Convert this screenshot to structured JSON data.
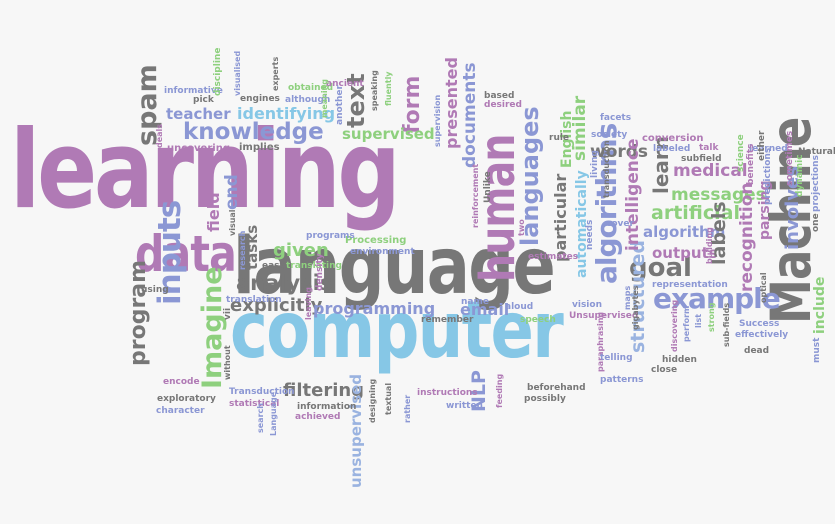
{
  "palette": {
    "blue": "#8b97d4",
    "sky": "#86c7e6",
    "purple": "#b07ab5",
    "green": "#8ed07e",
    "gray": "#777777",
    "lightblue": "#9ab3e0"
  },
  "words": [
    {
      "id": "w1",
      "text": "learning",
      "color": "purple"
    },
    {
      "id": "w2",
      "text": "language",
      "color": "gray"
    },
    {
      "id": "w3",
      "text": "computer",
      "color": "sky"
    },
    {
      "id": "w4",
      "text": "Machine",
      "color": "gray"
    },
    {
      "id": "w5",
      "text": "data",
      "color": "purple"
    },
    {
      "id": "w6",
      "text": "human",
      "color": "purple"
    },
    {
      "id": "w7",
      "text": "knowledge",
      "color": "blue"
    },
    {
      "id": "w8",
      "text": "spam",
      "color": "gray"
    },
    {
      "id": "w9",
      "text": "example",
      "color": "blue"
    },
    {
      "id": "w10",
      "text": "goal",
      "color": "gray"
    },
    {
      "id": "w11",
      "text": "Imagine",
      "color": "green"
    },
    {
      "id": "w12",
      "text": "inputs",
      "color": "blue"
    },
    {
      "id": "w13",
      "text": "program",
      "color": "gray"
    },
    {
      "id": "w14",
      "text": "analysis",
      "color": "gray"
    },
    {
      "id": "w15",
      "text": "explicitly",
      "color": "gray"
    },
    {
      "id": "w16",
      "text": "programming",
      "color": "blue"
    },
    {
      "id": "w17",
      "text": "given",
      "color": "green"
    },
    {
      "id": "w18",
      "text": "filtering",
      "color": "gray"
    },
    {
      "id": "w19",
      "text": "unsupervised",
      "color": "lightblue"
    },
    {
      "id": "w20",
      "text": "NLP",
      "color": "blue"
    },
    {
      "id": "w21",
      "text": "email",
      "color": "blue"
    },
    {
      "id": "w22",
      "text": "languages",
      "color": "blue"
    },
    {
      "id": "w23",
      "text": "documents",
      "color": "blue"
    },
    {
      "id": "w24",
      "text": "presented",
      "color": "purple"
    },
    {
      "id": "w25",
      "text": "form",
      "color": "purple"
    },
    {
      "id": "w26",
      "text": "text",
      "color": "gray"
    },
    {
      "id": "w27",
      "text": "supervised",
      "color": "green"
    },
    {
      "id": "w28",
      "text": "identifying",
      "color": "sky"
    },
    {
      "id": "w29",
      "text": "teacher",
      "color": "blue"
    },
    {
      "id": "w30",
      "text": "algorithms",
      "color": "blue"
    },
    {
      "id": "w31",
      "text": "structured",
      "color": "lightblue"
    },
    {
      "id": "w32",
      "text": "automatically",
      "color": "sky"
    },
    {
      "id": "w33",
      "text": "particular",
      "color": "gray"
    },
    {
      "id": "w34",
      "text": "English",
      "color": "green"
    },
    {
      "id": "w35",
      "text": "similar",
      "color": "green"
    },
    {
      "id": "w36",
      "text": "words",
      "color": "gray"
    },
    {
      "id": "w37",
      "text": "learn",
      "color": "gray"
    },
    {
      "id": "w38",
      "text": "intelligence",
      "color": "purple"
    },
    {
      "id": "w39",
      "text": "artificial",
      "color": "green"
    },
    {
      "id": "w40",
      "text": "algorithm",
      "color": "blue"
    },
    {
      "id": "w41",
      "text": "outputs",
      "color": "purple"
    },
    {
      "id": "w42",
      "text": "medical",
      "color": "purple"
    },
    {
      "id": "w43",
      "text": "messages",
      "color": "green"
    },
    {
      "id": "w44",
      "text": "labels",
      "color": "gray"
    },
    {
      "id": "w45",
      "text": "recognition",
      "color": "purple"
    },
    {
      "id": "w46",
      "text": "parsing",
      "color": "purple"
    },
    {
      "id": "w47",
      "text": "involves",
      "color": "blue"
    },
    {
      "id": "w48",
      "text": "include",
      "color": "green"
    },
    {
      "id": "w49",
      "text": "tasks",
      "color": "gray"
    },
    {
      "id": "w50",
      "text": "field",
      "color": "purple"
    },
    {
      "id": "w51",
      "text": "end",
      "color": "blue"
    },
    {
      "id": "w52",
      "text": "implies",
      "color": "gray"
    },
    {
      "id": "w53",
      "text": "uncovering",
      "color": "purple"
    },
    {
      "id": "w54",
      "text": "informative",
      "color": "blue"
    },
    {
      "id": "w55",
      "text": "pick",
      "color": "gray"
    },
    {
      "id": "w56",
      "text": "discipline",
      "color": "green"
    },
    {
      "id": "w57",
      "text": "visualised",
      "color": "blue"
    },
    {
      "id": "w58",
      "text": "engines",
      "color": "gray"
    },
    {
      "id": "w59",
      "text": "obtained",
      "color": "green"
    },
    {
      "id": "w60",
      "text": "although",
      "color": "blue"
    },
    {
      "id": "w61",
      "text": "experts",
      "color": "gray"
    },
    {
      "id": "w62",
      "text": "ancient",
      "color": "purple"
    },
    {
      "id": "w63",
      "text": "meaning",
      "color": "green"
    },
    {
      "id": "w64",
      "text": "another",
      "color": "blue"
    },
    {
      "id": "w65",
      "text": "speaking",
      "color": "gray"
    },
    {
      "id": "w66",
      "text": "fluently",
      "color": "green"
    },
    {
      "id": "w67",
      "text": "supervision",
      "color": "blue"
    },
    {
      "id": "w68",
      "text": "based",
      "color": "gray"
    },
    {
      "id": "w69",
      "text": "desired",
      "color": "purple"
    },
    {
      "id": "w70",
      "text": "rule",
      "color": "gray"
    },
    {
      "id": "w71",
      "text": "facets",
      "color": "blue"
    },
    {
      "id": "w72",
      "text": "society",
      "color": "blue"
    },
    {
      "id": "w73",
      "text": "conversion",
      "color": "purple"
    },
    {
      "id": "w74",
      "text": "labeled",
      "color": "blue"
    },
    {
      "id": "w75",
      "text": "talk",
      "color": "purple"
    },
    {
      "id": "w76",
      "text": "learned",
      "color": "blue"
    },
    {
      "id": "w77",
      "text": "subfield",
      "color": "gray"
    },
    {
      "id": "w78",
      "text": "science",
      "color": "green"
    },
    {
      "id": "w79",
      "text": "benefits",
      "color": "purple"
    },
    {
      "id": "w80",
      "text": "predictions",
      "color": "blue"
    },
    {
      "id": "w81",
      "text": "sometimes",
      "color": "purple"
    },
    {
      "id": "w82",
      "text": "Natural",
      "color": "gray"
    },
    {
      "id": "w83",
      "text": "dynamic",
      "color": "green"
    },
    {
      "id": "w84",
      "text": "projections",
      "color": "blue"
    },
    {
      "id": "w85",
      "text": "either",
      "color": "gray"
    },
    {
      "id": "w86",
      "text": "one",
      "color": "gray"
    },
    {
      "id": "w87",
      "text": "must",
      "color": "blue"
    },
    {
      "id": "w88",
      "text": "living",
      "color": "blue"
    },
    {
      "id": "w89",
      "text": "transduction",
      "color": "gray"
    },
    {
      "id": "w90",
      "text": "cover",
      "color": "blue"
    },
    {
      "id": "w91",
      "text": "Unlike",
      "color": "gray"
    },
    {
      "id": "w92",
      "text": "reinforcement",
      "color": "purple"
    },
    {
      "id": "w93",
      "text": "two",
      "color": "purple"
    },
    {
      "id": "w94",
      "text": "estimates",
      "color": "purple"
    },
    {
      "id": "w95",
      "text": "needs",
      "color": "blue"
    },
    {
      "id": "w96",
      "text": "Processing",
      "color": "green"
    },
    {
      "id": "w97",
      "text": "environment",
      "color": "blue"
    },
    {
      "id": "w98",
      "text": "programs",
      "color": "blue"
    },
    {
      "id": "w99",
      "text": "research",
      "color": "blue"
    },
    {
      "id": "w100",
      "text": "visual",
      "color": "gray"
    },
    {
      "id": "w101",
      "text": "easy",
      "color": "gray"
    },
    {
      "id": "w102",
      "text": "translating",
      "color": "green"
    },
    {
      "id": "w103",
      "text": "translation",
      "color": "blue"
    },
    {
      "id": "w104",
      "text": "density",
      "color": "purple"
    },
    {
      "id": "w105",
      "text": "leaving",
      "color": "purple"
    },
    {
      "id": "w106",
      "text": "using",
      "color": "gray"
    },
    {
      "id": "w107",
      "text": "vii",
      "color": "gray"
    },
    {
      "id": "w108",
      "text": "without",
      "color": "gray"
    },
    {
      "id": "w109",
      "text": "deals",
      "color": "purple"
    },
    {
      "id": "w110",
      "text": "encode",
      "color": "purple"
    },
    {
      "id": "w111",
      "text": "Transduction",
      "color": "blue"
    },
    {
      "id": "w112",
      "text": "statistical",
      "color": "purple"
    },
    {
      "id": "w113",
      "text": "search",
      "color": "blue"
    },
    {
      "id": "w114",
      "text": "Language",
      "color": "blue"
    },
    {
      "id": "w115",
      "text": "exploratory",
      "color": "gray"
    },
    {
      "id": "w116",
      "text": "character",
      "color": "blue"
    },
    {
      "id": "w117",
      "text": "information",
      "color": "gray"
    },
    {
      "id": "w118",
      "text": "achieved",
      "color": "purple"
    },
    {
      "id": "w119",
      "text": "designing",
      "color": "gray"
    },
    {
      "id": "w120",
      "text": "textual",
      "color": "gray"
    },
    {
      "id": "w121",
      "text": "rather",
      "color": "blue"
    },
    {
      "id": "w122",
      "text": "instructions",
      "color": "purple"
    },
    {
      "id": "w123",
      "text": "written",
      "color": "blue"
    },
    {
      "id": "w124",
      "text": "feeding",
      "color": "purple"
    },
    {
      "id": "w125",
      "text": "beforehand",
      "color": "gray"
    },
    {
      "id": "w126",
      "text": "possibly",
      "color": "gray"
    },
    {
      "id": "w127",
      "text": "remember",
      "color": "gray"
    },
    {
      "id": "w128",
      "text": "name",
      "color": "blue"
    },
    {
      "id": "w129",
      "text": "aloud",
      "color": "blue"
    },
    {
      "id": "w130",
      "text": "speech",
      "color": "green"
    },
    {
      "id": "w131",
      "text": "vision",
      "color": "blue"
    },
    {
      "id": "w132",
      "text": "Unsupervised",
      "color": "purple"
    },
    {
      "id": "w133",
      "text": "maps",
      "color": "blue"
    },
    {
      "id": "w134",
      "text": "gigabytes",
      "color": "gray"
    },
    {
      "id": "w135",
      "text": "paraphrasing",
      "color": "purple"
    },
    {
      "id": "w136",
      "text": "telling",
      "color": "blue"
    },
    {
      "id": "w137",
      "text": "patterns",
      "color": "blue"
    },
    {
      "id": "w138",
      "text": "hidden",
      "color": "gray"
    },
    {
      "id": "w139",
      "text": "close",
      "color": "gray"
    },
    {
      "id": "w140",
      "text": "discovering",
      "color": "purple"
    },
    {
      "id": "w141",
      "text": "perform",
      "color": "blue"
    },
    {
      "id": "w142",
      "text": "list",
      "color": "blue"
    },
    {
      "id": "w143",
      "text": "strong",
      "color": "green"
    },
    {
      "id": "w144",
      "text": "effectively",
      "color": "blue"
    },
    {
      "id": "w145",
      "text": "sub-fields",
      "color": "gray"
    },
    {
      "id": "w146",
      "text": "Success",
      "color": "blue"
    },
    {
      "id": "w147",
      "text": "dead",
      "color": "gray"
    },
    {
      "id": "w148",
      "text": "optical",
      "color": "gray"
    },
    {
      "id": "w149",
      "text": "building",
      "color": "purple"
    },
    {
      "id": "w150",
      "text": "representation",
      "color": "blue"
    }
  ]
}
